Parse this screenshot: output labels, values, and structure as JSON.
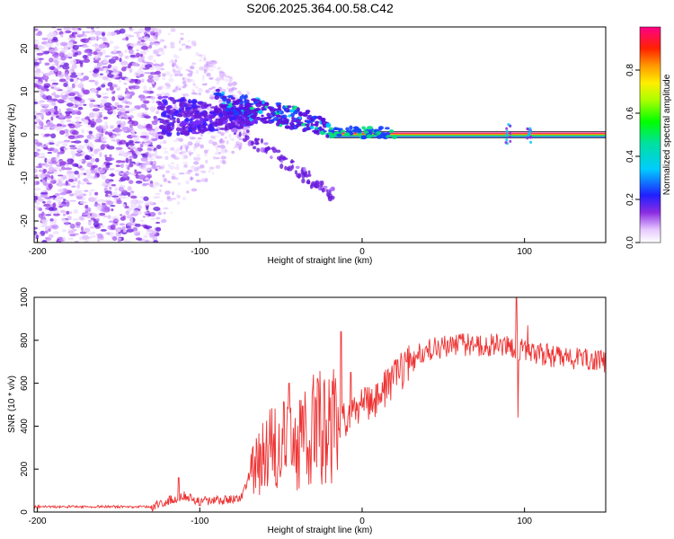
{
  "title": "S206.2025.364.00.58.C42",
  "chart_data": [
    {
      "type": "heatmap",
      "xlabel": "Height of straight line (km)",
      "ylabel": "Frequency (Hz)",
      "xlim": [
        -202,
        150
      ],
      "ylim": [
        -25,
        25
      ],
      "xticks": [
        -200,
        -100,
        0,
        100
      ],
      "yticks": [
        -20,
        -10,
        0,
        10,
        20
      ],
      "colorbar": {
        "label": "Normalized spectral amplitude",
        "range": [
          0,
          1
        ],
        "ticks": [
          0.0,
          0.2,
          0.4,
          0.6,
          0.8
        ]
      },
      "features": {
        "noise_region_km": [
          -202,
          -125
        ],
        "chirp_branch_upper_km": [
          -90,
          -20
        ],
        "chirp_branch_lower_km": [
          -80,
          -18
        ],
        "steady_tone_km": [
          -20,
          150
        ],
        "steady_tone_hz": 0
      }
    },
    {
      "type": "line",
      "xlabel": "Height of straight line (km)",
      "ylabel": "SNR (10 * v/v)",
      "xlim": [
        -202,
        150
      ],
      "ylim": [
        0,
        1000
      ],
      "xticks": [
        -200,
        -100,
        0,
        100
      ],
      "yticks": [
        0,
        200,
        400,
        600,
        800,
        1000
      ],
      "series": [
        {
          "color": "#ee3333",
          "profile": {
            "x": [
              -202,
              -130,
              -120,
              -110,
              -100,
              -75,
              -70,
              -60,
              -40,
              -25,
              -15,
              0,
              10,
              20,
              30,
              40,
              60,
              80,
              100,
              120,
              150
            ],
            "y": [
              25,
              25,
              50,
              80,
              50,
              60,
              150,
              280,
              320,
              400,
              400,
              500,
              540,
              620,
              700,
              760,
              780,
              780,
              750,
              720,
              700
            ]
          },
          "spikes": [
            {
              "x": -113,
              "y": 160
            },
            {
              "x": -45,
              "y": 600
            },
            {
              "x": -30,
              "y": 640
            },
            {
              "x": -13,
              "y": 840
            },
            {
              "x": -7,
              "y": 650
            },
            {
              "x": 87,
              "y": 800
            },
            {
              "x": 95,
              "y": 1000
            },
            {
              "x": 96,
              "y": 440
            },
            {
              "x": 102,
              "y": 870
            }
          ]
        }
      ]
    }
  ]
}
